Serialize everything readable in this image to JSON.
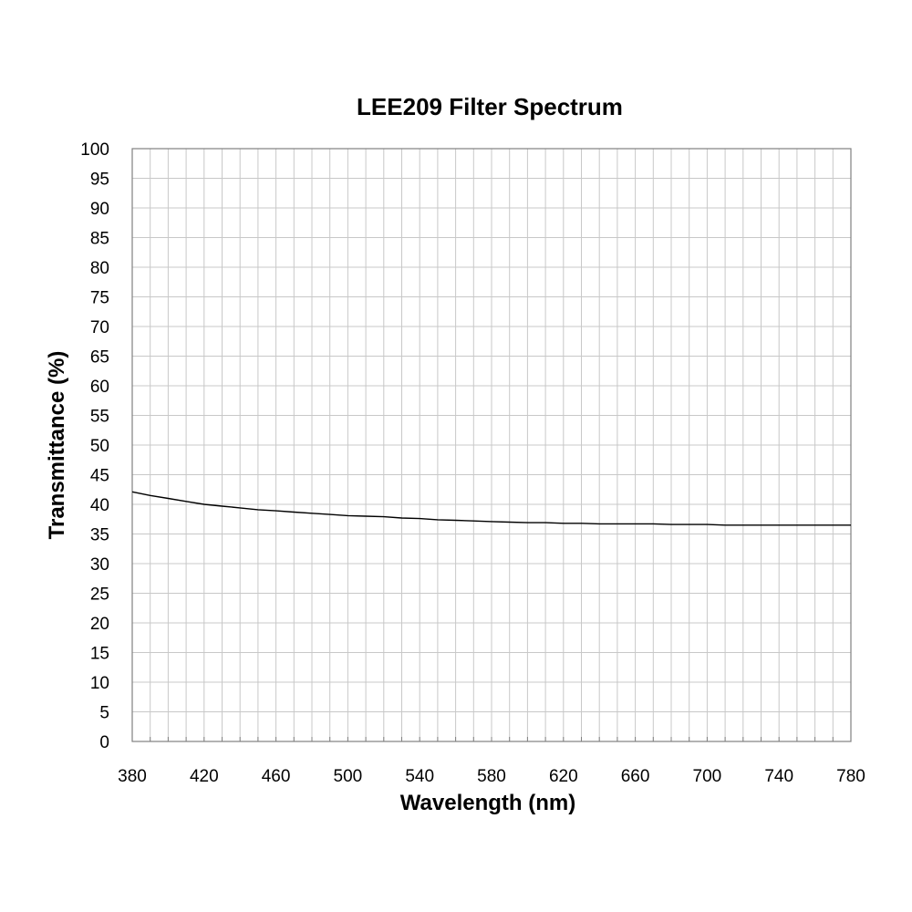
{
  "chart_data": {
    "type": "line",
    "title": "LEE209 Filter Spectrum",
    "xlabel": "Wavelength (nm)",
    "ylabel": "Transmittance (%)",
    "xlim": [
      380,
      780
    ],
    "ylim": [
      0,
      100
    ],
    "x_tick_labels": [
      "380",
      "420",
      "460",
      "500",
      "540",
      "580",
      "620",
      "660",
      "700",
      "740",
      "780"
    ],
    "y_tick_labels": [
      "0",
      "5",
      "10",
      "15",
      "20",
      "25",
      "30",
      "35",
      "40",
      "45",
      "50",
      "55",
      "60",
      "65",
      "70",
      "75",
      "80",
      "85",
      "90",
      "95",
      "100"
    ],
    "grid": true,
    "legend": "none",
    "line_color": "#000000",
    "series": [
      {
        "x": [
          380,
          390,
          400,
          410,
          420,
          430,
          440,
          450,
          460,
          470,
          480,
          490,
          500,
          510,
          520,
          530,
          540,
          550,
          560,
          570,
          580,
          590,
          600,
          610,
          620,
          630,
          640,
          650,
          660,
          670,
          680,
          690,
          700,
          710,
          720,
          730,
          740,
          750,
          760,
          770,
          780
        ],
        "values": [
          42.1,
          41.5,
          41.0,
          40.5,
          40.0,
          39.7,
          39.4,
          39.1,
          38.9,
          38.7,
          38.5,
          38.3,
          38.1,
          38.0,
          37.9,
          37.7,
          37.6,
          37.4,
          37.3,
          37.2,
          37.1,
          37.0,
          36.9,
          36.9,
          36.8,
          36.8,
          36.7,
          36.7,
          36.7,
          36.7,
          36.6,
          36.6,
          36.6,
          36.5,
          36.5,
          36.5,
          36.5,
          36.5,
          36.5,
          36.5,
          36.5
        ]
      }
    ]
  }
}
